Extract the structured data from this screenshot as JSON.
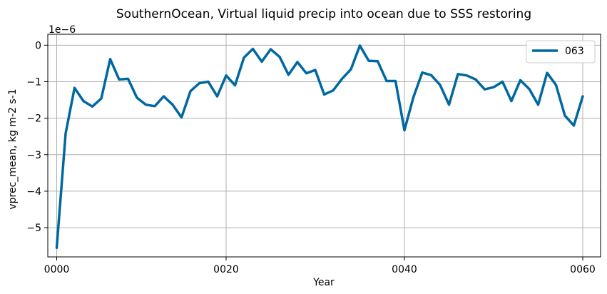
{
  "chart_data": {
    "type": "line",
    "title": "SouthernOcean, Virtual liquid precip into ocean due to SSS restoring",
    "xlabel": "Year",
    "ylabel": "vprec_mean, kg m-2 s-1",
    "offset_label": "1e−6",
    "xlim": [
      0,
      62
    ],
    "ylim": [
      -5.8,
      0.3
    ],
    "grid": true,
    "legend_position": "top-right",
    "x_ticks": [
      {
        "value": 1,
        "label": "0000"
      },
      {
        "value": 20,
        "label": "0020"
      },
      {
        "value": 40,
        "label": "0040"
      },
      {
        "value": 60,
        "label": "0060"
      }
    ],
    "y_ticks": [
      {
        "value": 0,
        "label": "0"
      },
      {
        "value": -1,
        "label": "−1"
      },
      {
        "value": -2,
        "label": "−2"
      },
      {
        "value": -3,
        "label": "−3"
      },
      {
        "value": -4,
        "label": "−4"
      },
      {
        "value": -5,
        "label": "−5"
      }
    ],
    "series": [
      {
        "name": "063",
        "color": "#0068a0",
        "x": [
          1,
          2,
          3,
          4,
          5,
          6,
          7,
          8,
          9,
          10,
          11,
          12,
          13,
          14,
          15,
          16,
          17,
          18,
          19,
          20,
          21,
          22,
          23,
          24,
          25,
          26,
          27,
          28,
          29,
          30,
          31,
          32,
          33,
          34,
          35,
          36,
          37,
          38,
          39,
          40,
          41,
          42,
          43,
          44,
          45,
          46,
          47,
          48,
          49,
          50,
          51,
          52,
          53,
          54,
          55,
          56,
          57,
          58,
          59,
          60
        ],
        "y": [
          -5.55,
          -2.42,
          -1.17,
          -1.53,
          -1.68,
          -1.46,
          -0.38,
          -0.94,
          -0.92,
          -1.44,
          -1.63,
          -1.67,
          -1.4,
          -1.63,
          -1.98,
          -1.26,
          -1.04,
          -1.0,
          -1.4,
          -0.83,
          -1.1,
          -0.34,
          -0.1,
          -0.45,
          -0.11,
          -0.32,
          -0.81,
          -0.46,
          -0.77,
          -0.68,
          -1.35,
          -1.24,
          -0.92,
          -0.66,
          -0.01,
          -0.43,
          -0.44,
          -0.98,
          -0.98,
          -2.33,
          -1.43,
          -0.75,
          -0.82,
          -1.09,
          -1.63,
          -0.79,
          -0.83,
          -0.94,
          -1.21,
          -1.15,
          -1.0,
          -1.53,
          -0.96,
          -1.2,
          -1.63,
          -0.76,
          -1.09,
          -1.93,
          -2.2,
          -1.4
        ]
      }
    ]
  }
}
